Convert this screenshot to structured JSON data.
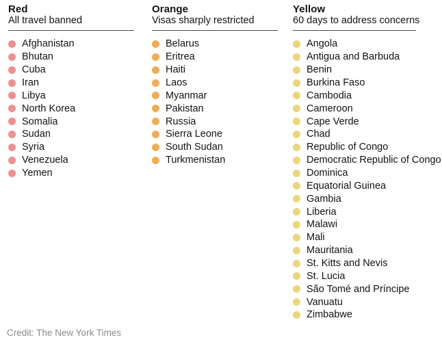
{
  "chart_data": {
    "type": "table",
    "title": "",
    "legend_position": "none",
    "categories": [
      {
        "label": "Red",
        "description": "All travel banned",
        "dot_color": "#EE9090",
        "countries": [
          "Afghanistan",
          "Bhutan",
          "Cuba",
          "Iran",
          "Libya",
          "North Korea",
          "Somalia",
          "Sudan",
          "Syria",
          "Venezuela",
          "Yemen"
        ]
      },
      {
        "label": "Orange",
        "description": "Visas sharply restricted",
        "dot_color": "#F0AC58",
        "countries": [
          "Belarus",
          "Eritrea",
          "Haiti",
          "Laos",
          "Myanmar",
          "Pakistan",
          "Russia",
          "Sierra Leone",
          "South Sudan",
          "Turkmenistan"
        ]
      },
      {
        "label": "Yellow",
        "description": "60 days to address concerns",
        "dot_color": "#EBD67D",
        "countries": [
          "Angola",
          "Antigua and Barbuda",
          "Benin",
          "Burkina Faso",
          "Cambodia",
          "Cameroon",
          "Cape Verde",
          "Chad",
          "Republic of Congo",
          "Democratic Republic of Congo",
          "Dominica",
          "Equatorial Guinea",
          "Gambia",
          "Liberia",
          "Malawi",
          "Mali",
          "Mauritania",
          "St. Kitts and Nevis",
          "St. Lucia",
          "São Tomé and Príncipe",
          "Vanuatu",
          "Zimbabwe"
        ]
      }
    ]
  },
  "credit": "Credit: The New York Times",
  "colors": {
    "text": "#121212",
    "rule": "#4A4A4A",
    "credit_text": "#8A8A8A",
    "background": "#FFFFFF"
  }
}
